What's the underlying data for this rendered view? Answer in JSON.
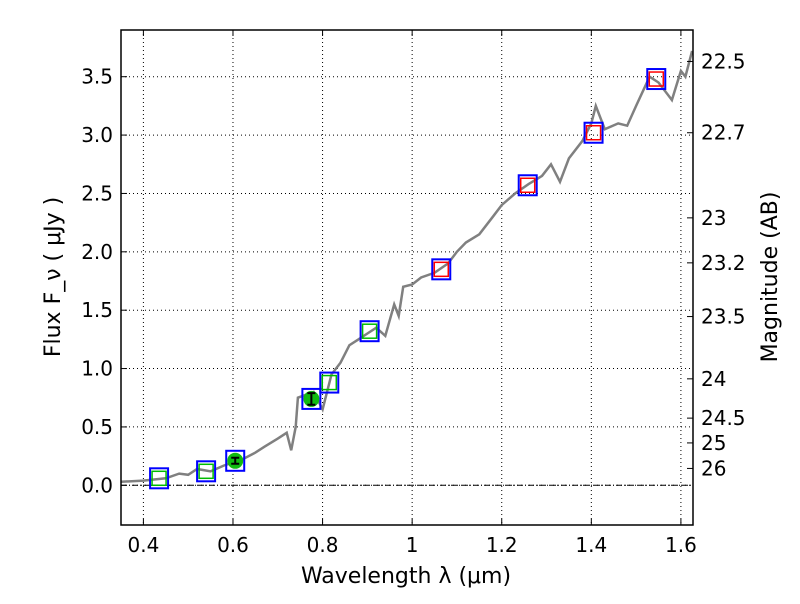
{
  "chart_data": {
    "type": "line",
    "title": "",
    "xlabel": "Wavelength  λ (μm)",
    "ylabel": "Flux  F_ν  ( μJy )",
    "ylabel_right": "Magnitude (AB)",
    "xlim": [
      0.35,
      1.627
    ],
    "ylim": [
      -0.34,
      3.9
    ],
    "grid": true,
    "x_ticks": [
      0.4,
      0.6,
      0.8,
      1.0,
      1.2,
      1.4,
      1.6
    ],
    "x_tick_labels": [
      "0.4",
      "0.6",
      "0.8",
      "1",
      "1.2",
      "1.4",
      "1.6"
    ],
    "y_ticks": [
      0.0,
      0.5,
      1.0,
      1.5,
      2.0,
      2.5,
      3.0,
      3.5
    ],
    "y_tick_labels": [
      "0.0",
      "0.5",
      "1.0",
      "1.5",
      "2.0",
      "2.5",
      "3.0",
      "3.5"
    ],
    "right_ticks_mag": [
      22.5,
      22.7,
      23,
      23.2,
      23.5,
      24,
      24.5,
      25,
      26
    ],
    "right_tick_labels": [
      "22.5",
      "22.7",
      "23",
      "23.2",
      "23.5",
      "24",
      "24.5",
      "25",
      "26"
    ],
    "colors": {
      "spectrum": "#808080",
      "model": "#0000ff",
      "optical": "#00bb00",
      "nir": "#ff0000",
      "measured": "#11bb11"
    },
    "spectrum": {
      "name": "spectrum",
      "x": [
        0.35,
        0.4,
        0.45,
        0.48,
        0.5,
        0.52,
        0.55,
        0.58,
        0.62,
        0.65,
        0.67,
        0.7,
        0.72,
        0.73,
        0.74,
        0.745,
        0.78,
        0.8,
        0.82,
        0.84,
        0.86,
        0.88,
        0.9,
        0.92,
        0.94,
        0.96,
        0.97,
        0.98,
        1.0,
        1.02,
        1.05,
        1.08,
        1.1,
        1.12,
        1.15,
        1.18,
        1.2,
        1.23,
        1.26,
        1.29,
        1.31,
        1.33,
        1.35,
        1.38,
        1.4,
        1.41,
        1.43,
        1.46,
        1.48,
        1.5,
        1.53,
        1.55,
        1.57,
        1.58,
        1.6,
        1.61,
        1.625
      ],
      "y": [
        0.03,
        0.04,
        0.06,
        0.1,
        0.09,
        0.14,
        0.12,
        0.17,
        0.22,
        0.28,
        0.33,
        0.4,
        0.45,
        0.3,
        0.5,
        0.75,
        0.8,
        0.65,
        0.95,
        1.05,
        1.2,
        1.25,
        1.3,
        1.35,
        1.28,
        1.55,
        1.45,
        1.7,
        1.72,
        1.78,
        1.82,
        1.9,
        2.0,
        2.08,
        2.15,
        2.3,
        2.4,
        2.5,
        2.58,
        2.65,
        2.75,
        2.6,
        2.8,
        2.95,
        3.1,
        3.25,
        3.05,
        3.1,
        3.08,
        3.25,
        3.5,
        3.45,
        3.35,
        3.3,
        3.55,
        3.5,
        3.72
      ]
    },
    "model_points": [
      {
        "x": 0.435,
        "y": 0.06,
        "kind": "optical"
      },
      {
        "x": 0.54,
        "y": 0.12,
        "kind": "optical"
      },
      {
        "x": 0.605,
        "y": 0.21,
        "kind": "measured",
        "err": 0.02
      },
      {
        "x": 0.775,
        "y": 0.74,
        "kind": "measured",
        "err": 0.05
      },
      {
        "x": 0.815,
        "y": 0.88,
        "kind": "optical"
      },
      {
        "x": 0.905,
        "y": 1.32,
        "kind": "optical"
      },
      {
        "x": 1.065,
        "y": 1.85,
        "kind": "nir"
      },
      {
        "x": 1.258,
        "y": 2.57,
        "kind": "nir"
      },
      {
        "x": 1.405,
        "y": 3.02,
        "kind": "nir"
      },
      {
        "x": 1.545,
        "y": 3.48,
        "kind": "nir"
      }
    ]
  }
}
